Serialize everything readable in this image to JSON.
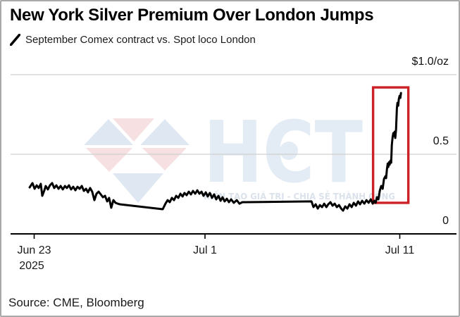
{
  "header": {
    "title": "New York Silver Premium Over London Jumps",
    "legend_label": "September Comex contract vs. Spot loco London"
  },
  "footer": {
    "source": "Source: CME, Bloomberg"
  },
  "watermark": {
    "brand": "HCT",
    "tagline": "KIẾN TẠO GIÁ TRỊ - CHIA SẺ THÀNH CÔNG",
    "colors": {
      "blue": "#dfe8f2",
      "pink": "#f6e0e1",
      "brand_text": "#e3ebf4",
      "tagline_text": "#dbe2ec"
    }
  },
  "chart_data": {
    "type": "line",
    "title": "New York Silver Premium Over London Jumps",
    "subtitle": "September Comex contract vs. Spot loco London",
    "unit": "$/oz",
    "grid": "horizontal",
    "colors": {
      "line": "#000000",
      "grid": "#cfcfcf",
      "axis": "#000000",
      "annotation": "#cc2127"
    },
    "x_axis": {
      "start_date": "2025-06-23",
      "note": "x values are days since Jun 23 2025",
      "ticks": [
        {
          "day": 0,
          "label": "Jun 23",
          "sublabel": "2025"
        },
        {
          "day": 8,
          "label": "Jul 1"
        },
        {
          "day": 18,
          "label": "Jul 11"
        }
      ]
    },
    "y_axis": {
      "range": [
        0,
        1.0
      ],
      "ticks": [
        {
          "value": 1.0,
          "label": "$1.0/oz"
        },
        {
          "value": 0.5,
          "label": "0.5"
        },
        {
          "value": 0.0,
          "label": "0"
        }
      ]
    },
    "annotation_box": {
      "day_range": [
        16.63,
        18.44
      ],
      "value_range": [
        0.195,
        0.92
      ]
    },
    "series": [
      {
        "name": "September Comex contract vs. Spot loco London",
        "color": "#000000",
        "points": [
          [
            -0.21,
            0.292
          ],
          [
            -0.08,
            0.319
          ],
          [
            0.02,
            0.283
          ],
          [
            0.12,
            0.305
          ],
          [
            0.21,
            0.288
          ],
          [
            0.31,
            0.314
          ],
          [
            0.38,
            0.239
          ],
          [
            0.48,
            0.274
          ],
          [
            0.54,
            0.301
          ],
          [
            0.64,
            0.279
          ],
          [
            0.74,
            0.305
          ],
          [
            0.84,
            0.319
          ],
          [
            0.94,
            0.288
          ],
          [
            1.04,
            0.305
          ],
          [
            1.14,
            0.283
          ],
          [
            1.24,
            0.301
          ],
          [
            1.34,
            0.279
          ],
          [
            1.44,
            0.301
          ],
          [
            1.53,
            0.288
          ],
          [
            1.63,
            0.305
          ],
          [
            1.73,
            0.279
          ],
          [
            1.83,
            0.296
          ],
          [
            1.93,
            0.274
          ],
          [
            2.03,
            0.296
          ],
          [
            2.13,
            0.283
          ],
          [
            2.23,
            0.301
          ],
          [
            2.33,
            0.27
          ],
          [
            2.43,
            0.283
          ],
          [
            2.52,
            0.261
          ],
          [
            2.62,
            0.288
          ],
          [
            2.72,
            0.265
          ],
          [
            2.82,
            0.212
          ],
          [
            2.92,
            0.252
          ],
          [
            3.02,
            0.265
          ],
          [
            3.12,
            0.248
          ],
          [
            3.22,
            0.23
          ],
          [
            3.32,
            0.239
          ],
          [
            3.42,
            0.204
          ],
          [
            3.51,
            0.226
          ],
          [
            3.61,
            0.164
          ],
          [
            3.71,
            0.212
          ],
          [
            3.81,
            0.195
          ],
          [
            3.91,
            0.19
          ],
          [
            4.01,
            0.186
          ],
          [
            6.02,
            0.155
          ],
          [
            6.15,
            0.19
          ],
          [
            6.25,
            0.212
          ],
          [
            6.35,
            0.199
          ],
          [
            6.45,
            0.226
          ],
          [
            6.55,
            0.212
          ],
          [
            6.65,
            0.239
          ],
          [
            6.75,
            0.226
          ],
          [
            6.85,
            0.252
          ],
          [
            6.95,
            0.235
          ],
          [
            7.04,
            0.257
          ],
          [
            7.14,
            0.243
          ],
          [
            7.24,
            0.265
          ],
          [
            7.34,
            0.248
          ],
          [
            7.44,
            0.27
          ],
          [
            7.54,
            0.252
          ],
          [
            7.64,
            0.274
          ],
          [
            7.74,
            0.252
          ],
          [
            7.84,
            0.265
          ],
          [
            7.93,
            0.239
          ],
          [
            8.04,
            0.261
          ],
          [
            8.14,
            0.235
          ],
          [
            8.25,
            0.257
          ],
          [
            8.36,
            0.226
          ],
          [
            8.47,
            0.248
          ],
          [
            8.58,
            0.217
          ],
          [
            8.69,
            0.239
          ],
          [
            8.8,
            0.208
          ],
          [
            8.9,
            0.23
          ],
          [
            9.01,
            0.204
          ],
          [
            9.12,
            0.221
          ],
          [
            9.23,
            0.199
          ],
          [
            9.34,
            0.217
          ],
          [
            9.48,
            0.195
          ],
          [
            9.63,
            0.212
          ],
          [
            9.77,
            0.19
          ],
          [
            9.92,
            0.199
          ],
          [
            10.1,
            0.199
          ],
          [
            13.47,
            0.204
          ],
          [
            13.57,
            0.168
          ],
          [
            13.68,
            0.186
          ],
          [
            13.79,
            0.159
          ],
          [
            13.9,
            0.181
          ],
          [
            14.01,
            0.168
          ],
          [
            14.12,
            0.19
          ],
          [
            14.23,
            0.168
          ],
          [
            14.33,
            0.186
          ],
          [
            14.44,
            0.199
          ],
          [
            14.55,
            0.177
          ],
          [
            14.66,
            0.19
          ],
          [
            14.77,
            0.168
          ],
          [
            14.88,
            0.181
          ],
          [
            14.99,
            0.159
          ],
          [
            15.09,
            0.146
          ],
          [
            15.2,
            0.173
          ],
          [
            15.31,
            0.159
          ],
          [
            15.42,
            0.186
          ],
          [
            15.53,
            0.168
          ],
          [
            15.64,
            0.195
          ],
          [
            15.75,
            0.177
          ],
          [
            15.86,
            0.204
          ],
          [
            15.96,
            0.186
          ],
          [
            16.07,
            0.208
          ],
          [
            16.18,
            0.19
          ],
          [
            16.29,
            0.212
          ],
          [
            16.4,
            0.195
          ],
          [
            16.51,
            0.217
          ],
          [
            16.61,
            0.19
          ],
          [
            16.69,
            0.208
          ],
          [
            16.76,
            0.195
          ],
          [
            16.83,
            0.23
          ],
          [
            16.9,
            0.217
          ],
          [
            16.98,
            0.274
          ],
          [
            17.05,
            0.301
          ],
          [
            17.12,
            0.283
          ],
          [
            17.19,
            0.345
          ],
          [
            17.27,
            0.363
          ],
          [
            17.3,
            0.35
          ],
          [
            17.34,
            0.407
          ],
          [
            17.38,
            0.442
          ],
          [
            17.41,
            0.42
          ],
          [
            17.45,
            0.451
          ],
          [
            17.48,
            0.434
          ],
          [
            17.52,
            0.46
          ],
          [
            17.56,
            0.447
          ],
          [
            17.59,
            0.558
          ],
          [
            17.63,
            0.606
          ],
          [
            17.67,
            0.633
          ],
          [
            17.7,
            0.615
          ],
          [
            17.74,
            0.642
          ],
          [
            17.77,
            0.602
          ],
          [
            17.81,
            0.655
          ],
          [
            17.85,
            0.788
          ],
          [
            17.88,
            0.823
          ],
          [
            17.92,
            0.805
          ],
          [
            17.95,
            0.845
          ],
          [
            17.99,
            0.867
          ],
          [
            18.03,
            0.854
          ],
          [
            18.06,
            0.885
          ]
        ]
      }
    ]
  }
}
